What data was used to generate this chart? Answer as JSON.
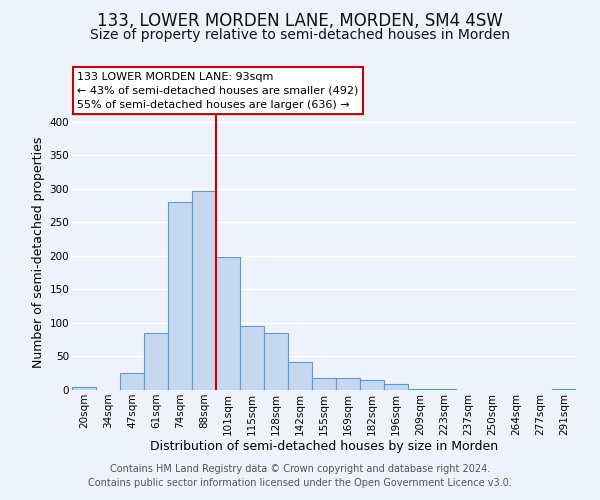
{
  "title": "133, LOWER MORDEN LANE, MORDEN, SM4 4SW",
  "subtitle": "Size of property relative to semi-detached houses in Morden",
  "xlabel": "Distribution of semi-detached houses by size in Morden",
  "ylabel": "Number of semi-detached properties",
  "categories": [
    "20sqm",
    "34sqm",
    "47sqm",
    "61sqm",
    "74sqm",
    "88sqm",
    "101sqm",
    "115sqm",
    "128sqm",
    "142sqm",
    "155sqm",
    "169sqm",
    "182sqm",
    "196sqm",
    "209sqm",
    "223sqm",
    "237sqm",
    "250sqm",
    "264sqm",
    "277sqm",
    "291sqm"
  ],
  "values": [
    5,
    0,
    25,
    85,
    280,
    297,
    198,
    95,
    85,
    42,
    18,
    18,
    15,
    9,
    2,
    1,
    0,
    0,
    0,
    0,
    2
  ],
  "bar_color": "#c5d8f0",
  "bar_edge_color": "#5b9bd5",
  "vline_color": "#cc0000",
  "annotation_title": "133 LOWER MORDEN LANE: 93sqm",
  "annotation_line1": "← 43% of semi-detached houses are smaller (492)",
  "annotation_line2": "55% of semi-detached houses are larger (636) →",
  "annotation_box_facecolor": "#ffffff",
  "annotation_box_edgecolor": "#cc0000",
  "ylim": [
    0,
    410
  ],
  "yticks": [
    0,
    50,
    100,
    150,
    200,
    250,
    300,
    350,
    400
  ],
  "footer_line1": "Contains HM Land Registry data © Crown copyright and database right 2024.",
  "footer_line2": "Contains public sector information licensed under the Open Government Licence v3.0.",
  "background_color": "#eef2fb",
  "grid_color": "#ffffff",
  "title_fontsize": 12,
  "subtitle_fontsize": 10,
  "axis_label_fontsize": 9,
  "tick_fontsize": 7.5,
  "annotation_fontsize": 8,
  "footer_fontsize": 7
}
